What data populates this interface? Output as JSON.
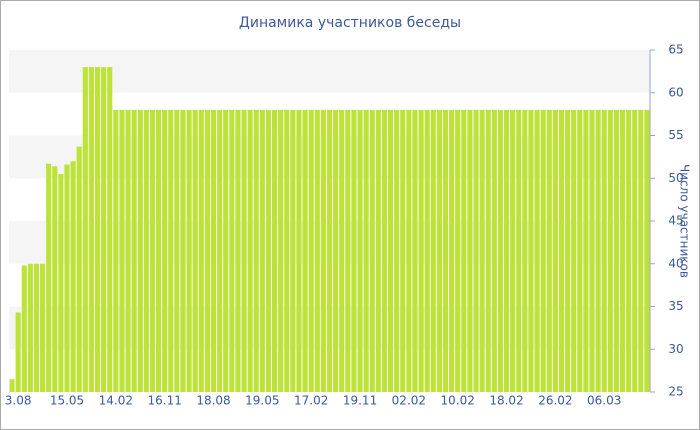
{
  "chart_data": {
    "type": "bar",
    "title": "Динамика участников беседы",
    "y_label": "Число участников",
    "categories": [
      null,
      "3.08",
      null,
      null,
      null,
      null,
      null,
      null,
      null,
      "15.05",
      null,
      null,
      null,
      null,
      null,
      null,
      null,
      "14.02",
      null,
      null,
      null,
      null,
      null,
      null,
      null,
      "16.11",
      null,
      null,
      null,
      null,
      null,
      null,
      null,
      "18.08",
      null,
      null,
      null,
      null,
      null,
      null,
      null,
      "19.05",
      null,
      null,
      null,
      null,
      null,
      null,
      null,
      "17.02",
      null,
      null,
      null,
      null,
      null,
      null,
      null,
      "19.11",
      null,
      null,
      null,
      null,
      null,
      null,
      null,
      "02.02",
      null,
      null,
      null,
      null,
      null,
      null,
      null,
      "10.02",
      null,
      null,
      null,
      null,
      null,
      null,
      null,
      "18.02",
      null,
      null,
      null,
      null,
      null,
      null,
      null,
      "26.02",
      null,
      null,
      null,
      null,
      null,
      null,
      null,
      "06.03",
      null,
      null,
      null,
      null,
      null,
      null,
      null
    ],
    "values": [
      26.5,
      34.3,
      39.8,
      40,
      40,
      40,
      51.7,
      51.4,
      50.5,
      51.6,
      52,
      53.7,
      63,
      63,
      63,
      63,
      63,
      58,
      58,
      58,
      58,
      58,
      58,
      58,
      58,
      58,
      58,
      58,
      58,
      58,
      58,
      58,
      58,
      58,
      58,
      58,
      58,
      58,
      58,
      58,
      58,
      58,
      58,
      58,
      58,
      58,
      58,
      58,
      58,
      58,
      58,
      58,
      58,
      58,
      58,
      58,
      58,
      58,
      58,
      58,
      58,
      58,
      58,
      58,
      58,
      58,
      58,
      58,
      58,
      58,
      58,
      58,
      58,
      58,
      58,
      58,
      58,
      58,
      58,
      58,
      58,
      58,
      58,
      58,
      58,
      58,
      58,
      58,
      58,
      58,
      58,
      58,
      58,
      58,
      58,
      58,
      58,
      58,
      58,
      58,
      58,
      58,
      58,
      58,
      58
    ],
    "color": "#bde23a",
    "ylim": [
      25,
      65
    ],
    "yticks": [
      25,
      30,
      35,
      40,
      45,
      50,
      55,
      60,
      65
    ],
    "grid": "bands",
    "y_axis_side": "right"
  }
}
